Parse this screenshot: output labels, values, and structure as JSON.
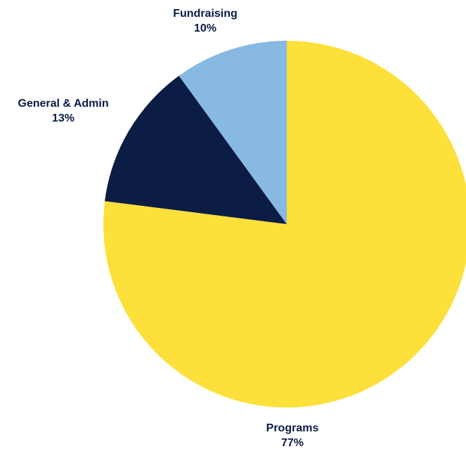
{
  "chart_data": {
    "type": "pie",
    "title": "",
    "slices": [
      {
        "label": "Programs",
        "value": 77,
        "value_label": "77%",
        "color": "#FDE03A"
      },
      {
        "label": "General & Admin",
        "value": 13,
        "value_label": "13%",
        "color": "#0B1C45"
      },
      {
        "label": "Fundraising",
        "value": 10,
        "value_label": "10%",
        "color": "#87B9E3"
      }
    ],
    "start_angle": "12 o'clock",
    "direction": "clockwise",
    "label_color": "#0B1C45",
    "legend": "none"
  }
}
